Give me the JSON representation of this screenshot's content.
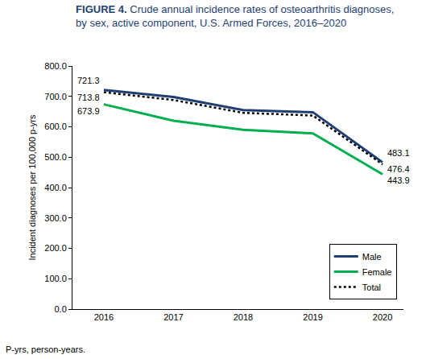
{
  "chart_data": {
    "type": "line",
    "title": "FIGURE 4. Crude annual incidence rates of osteoarthritis diagnoses, by sex, active component, U.S. Armed Forces, 2016–2020",
    "y_label": "Incident diagnoses per 100,000 p-yrs",
    "note": "P-yrs, person-years.",
    "categories": [
      "2016",
      "2017",
      "2018",
      "2019",
      "2020"
    ],
    "series": [
      {
        "name": "Male",
        "color": "#1f3f73",
        "line_style": "solid",
        "values": [
          721.3,
          698,
          655,
          648,
          483.1
        ],
        "value_labels": [
          "721.3",
          null,
          null,
          null,
          "483.1"
        ]
      },
      {
        "name": "Female",
        "color": "#00b050",
        "line_style": "solid",
        "values": [
          673.9,
          620,
          590,
          578,
          443.9
        ],
        "value_labels": [
          "673.9",
          null,
          null,
          null,
          "443.9"
        ]
      },
      {
        "name": "Total",
        "color": "#000000",
        "line_style": "dot",
        "values": [
          713.8,
          688,
          646,
          637,
          476.4
        ],
        "value_labels": [
          "713.8",
          null,
          null,
          null,
          "476.4"
        ]
      }
    ],
    "ylim": [
      0,
      800
    ],
    "yticks": [
      {
        "value": 0,
        "label": "0.0"
      },
      {
        "value": 100,
        "label": "100.0"
      },
      {
        "value": 200,
        "label": "200.0"
      },
      {
        "value": 300,
        "label": "300.0"
      },
      {
        "value": 400,
        "label": "400.0"
      },
      {
        "value": 500,
        "label": "500.0"
      },
      {
        "value": 600,
        "label": "600.0"
      },
      {
        "value": 700,
        "label": "700.0"
      },
      {
        "value": 800,
        "label": "800.0"
      }
    ],
    "grid": false,
    "legend": "bottom right"
  }
}
